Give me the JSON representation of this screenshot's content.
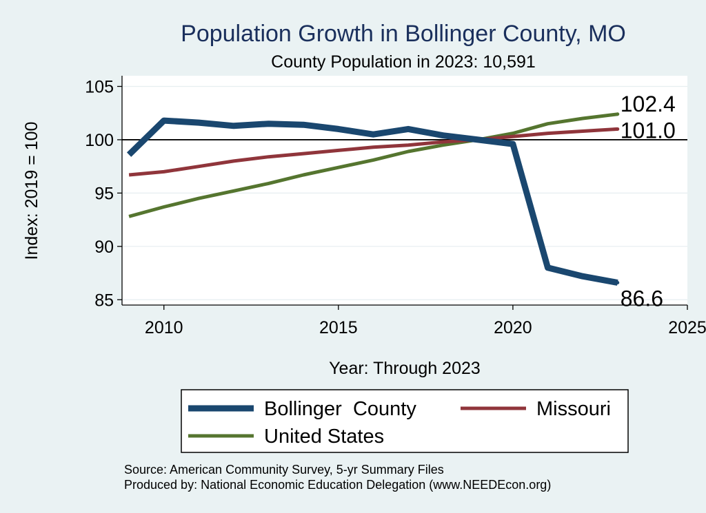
{
  "chart_data": {
    "type": "line",
    "title": "Population Growth in Bollinger County, MO",
    "subtitle": "County Population in 2023: 10,591",
    "xlabel": "Year: Through 2023",
    "ylabel": "Index: 2019 = 100",
    "xlim": [
      2008.8,
      2025
    ],
    "ylim": [
      84.5,
      106
    ],
    "x_ticks": [
      2010,
      2015,
      2020,
      2025
    ],
    "y_ticks": [
      85,
      90,
      95,
      100,
      105
    ],
    "reference_line": 100,
    "x": [
      2009,
      2010,
      2011,
      2012,
      2013,
      2014,
      2015,
      2016,
      2017,
      2018,
      2019,
      2020,
      2021,
      2022,
      2023
    ],
    "series": [
      {
        "name": "Bollinger  County",
        "color": "#1a476f",
        "values": [
          98.6,
          101.8,
          101.6,
          101.3,
          101.5,
          101.4,
          101.0,
          100.5,
          101.0,
          100.4,
          100.0,
          99.6,
          88.0,
          87.2,
          86.6
        ],
        "end_label": "86.6"
      },
      {
        "name": "Missouri",
        "color": "#90353b",
        "values": [
          96.7,
          97.0,
          97.5,
          98.0,
          98.4,
          98.7,
          99.0,
          99.3,
          99.5,
          99.8,
          100.0,
          100.3,
          100.6,
          100.8,
          101.0
        ],
        "end_label": "101.0"
      },
      {
        "name": "United States",
        "color": "#55752f",
        "values": [
          92.8,
          93.7,
          94.5,
          95.2,
          95.9,
          96.7,
          97.4,
          98.1,
          98.9,
          99.5,
          100.0,
          100.6,
          101.5,
          102.0,
          102.4
        ],
        "end_label": "102.4"
      }
    ],
    "legend": {
      "position": "bottom",
      "entries": [
        "Bollinger  County",
        "Missouri",
        "United States"
      ]
    }
  },
  "footer": {
    "source": "Source: American Community Survey, 5-yr Summary Files",
    "produced_by": "Produced by: National Economic Education Delegation (www.NEEDEcon.org)"
  },
  "colors": {
    "background": "#eaf2f3",
    "plot_background": "#ffffff",
    "title": "#1a2f5c"
  }
}
